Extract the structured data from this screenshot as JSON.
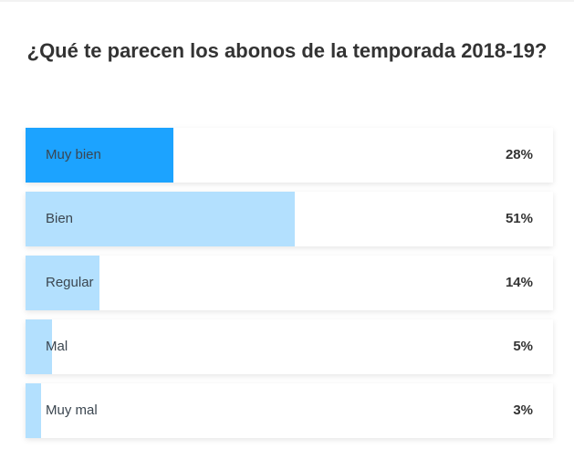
{
  "poll": {
    "title": "¿Qué te parecen los abonos de la temporada 2018-19?",
    "options": [
      {
        "label": "Muy bien",
        "percent_label": "28%",
        "percent": 28,
        "selected": true
      },
      {
        "label": "Bien",
        "percent_label": "51%",
        "percent": 51,
        "selected": false
      },
      {
        "label": "Regular",
        "percent_label": "14%",
        "percent": 14,
        "selected": false
      },
      {
        "label": "Mal",
        "percent_label": "5%",
        "percent": 5,
        "selected": false
      },
      {
        "label": "Muy mal",
        "percent_label": "3%",
        "percent": 3,
        "selected": false
      }
    ]
  },
  "colors": {
    "selected_fill": "#1ca3ff",
    "result_fill": "#b3e0fe",
    "text": "#333333"
  },
  "chart_data": {
    "type": "bar",
    "orientation": "horizontal",
    "title": "¿Qué te parecen los abonos de la temporada 2018-19?",
    "categories": [
      "Muy bien",
      "Bien",
      "Regular",
      "Mal",
      "Muy mal"
    ],
    "values": [
      28,
      51,
      14,
      5,
      3
    ],
    "unit": "%",
    "xlim": [
      0,
      100
    ],
    "highlighted_category": "Muy bien",
    "grid": false,
    "legend": null
  }
}
